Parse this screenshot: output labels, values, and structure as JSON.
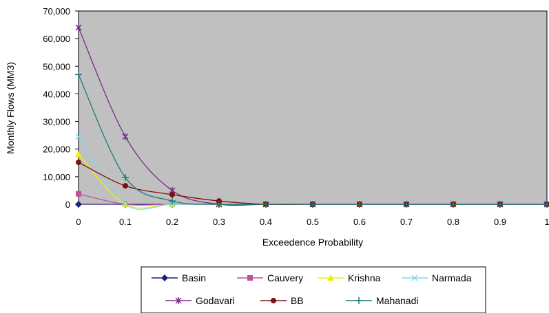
{
  "chart_data": {
    "type": "line",
    "title": "",
    "xlabel": "Exceedence Probability",
    "ylabel": "Monthly Flows (MM3)",
    "x": [
      0,
      0.1,
      0.2,
      0.3,
      0.4,
      0.5,
      0.6,
      0.7,
      0.8,
      0.9,
      1
    ],
    "x_tick_labels": [
      "0",
      "0.1",
      "0.2",
      "0.3",
      "0.4",
      "0.5",
      "0.6",
      "0.7",
      "0.8",
      "0.9",
      "1"
    ],
    "xlim": [
      0,
      1
    ],
    "ylim": [
      0,
      70000
    ],
    "y_ticks": [
      0,
      10000,
      20000,
      30000,
      40000,
      50000,
      60000,
      70000
    ],
    "y_tick_labels": [
      "0",
      "10,000",
      "20,000",
      "30,000",
      "40,000",
      "50,000",
      "60,000",
      "70,000"
    ],
    "plot_background": "#c0c0c0",
    "grid": false,
    "legend_position": "bottom",
    "series": [
      {
        "name": "Basin",
        "color": "#1f1f7a",
        "marker": "diamond",
        "values": [
          0,
          0,
          0,
          0,
          0,
          0,
          0,
          0,
          0,
          0,
          0
        ]
      },
      {
        "name": "Cauvery",
        "color": "#c0509e",
        "marker": "square",
        "values": [
          3800,
          0,
          0,
          0,
          0,
          0,
          0,
          0,
          0,
          0,
          0
        ]
      },
      {
        "name": "Krishna",
        "color": "#f2ee00",
        "marker": "triangle",
        "values": [
          18000,
          0,
          0,
          0,
          0,
          0,
          0,
          0,
          0,
          0,
          0
        ]
      },
      {
        "name": "Narmada",
        "color": "#80d8e8",
        "marker": "x",
        "values": [
          24500,
          0,
          0,
          0,
          0,
          0,
          0,
          0,
          0,
          0,
          0
        ]
      },
      {
        "name": "Godavari",
        "color": "#7a2a8c",
        "marker": "star",
        "values": [
          64000,
          24500,
          5000,
          0,
          0,
          0,
          0,
          0,
          0,
          0,
          0
        ]
      },
      {
        "name": "BB",
        "color": "#7a1010",
        "marker": "circle",
        "values": [
          15200,
          6700,
          3500,
          1200,
          0,
          0,
          0,
          0,
          0,
          0,
          0
        ]
      },
      {
        "name": "Mahanadi",
        "color": "#1a7a7a",
        "marker": "plus",
        "values": [
          47000,
          9700,
          1200,
          0,
          0,
          0,
          0,
          0,
          0,
          0,
          0
        ]
      }
    ]
  }
}
